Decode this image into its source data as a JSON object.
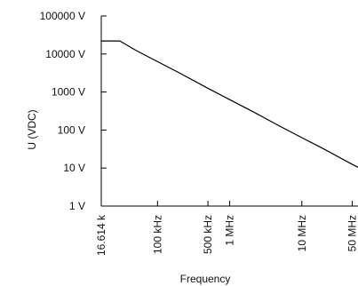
{
  "chart_data": {
    "type": "line",
    "title": "",
    "xlabel": "Frequency",
    "ylabel": "U (VDC)",
    "y_scale": "log",
    "x_scale": "log",
    "ylim": [
      1,
      100000
    ],
    "xlim": [
      16614,
      60000000
    ],
    "grid": false,
    "legend": "none",
    "line_color": "#000000",
    "y_ticks": [
      {
        "value": 1,
        "label": "1 V"
      },
      {
        "value": 10,
        "label": "10 V"
      },
      {
        "value": 100,
        "label": "100 V"
      },
      {
        "value": 1000,
        "label": "1000 V"
      },
      {
        "value": 10000,
        "label": "10000 V"
      },
      {
        "value": 100000,
        "label": "100000 V"
      }
    ],
    "x_ticks": [
      {
        "value": 16614,
        "label": "16.614 k"
      },
      {
        "value": 100000,
        "label": "100 kHz"
      },
      {
        "value": 500000,
        "label": "500 kHz"
      },
      {
        "value": 1000000,
        "label": "1 MHz"
      },
      {
        "value": 10000000,
        "label": "10 MHz"
      },
      {
        "value": 50000000,
        "label": "50 MHz"
      }
    ],
    "series": [
      {
        "x": [
          16614,
          30000,
          50000,
          100000,
          200000,
          500000,
          1000000,
          2000000,
          5000000,
          10000000,
          20000000,
          50000000,
          60000000
        ],
        "values": [
          22000,
          22000,
          12500,
          6300,
          3200,
          1250,
          630,
          320,
          125,
          63,
          32,
          12.5,
          10.5
        ]
      }
    ]
  }
}
